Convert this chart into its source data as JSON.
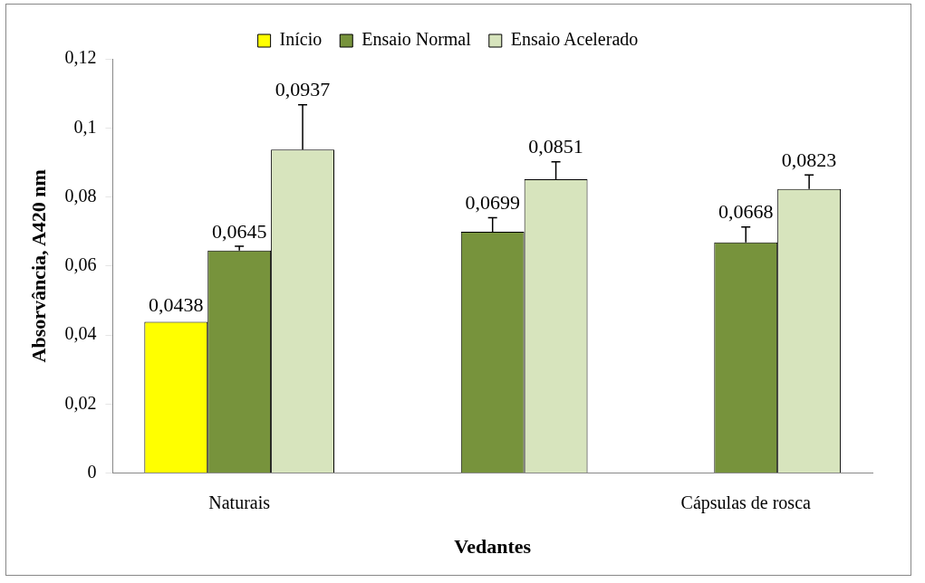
{
  "chart_data": {
    "type": "bar",
    "xlabel": "Vedantes",
    "ylabel": "Absorvância, A420 nm",
    "categories": [
      "Naturais",
      null,
      "Cápsulas de rosca"
    ],
    "series": [
      {
        "name": "Início",
        "color": "#ffff00",
        "values": [
          0.0438,
          null,
          null
        ],
        "value_labels": [
          "0,0438",
          null,
          null
        ]
      },
      {
        "name": "Ensaio Normal",
        "color": "#77933c",
        "values": [
          0.0645,
          0.0699,
          0.0668
        ],
        "value_labels": [
          "0,0645",
          "0,0699",
          "0,0668"
        ],
        "errors": [
          [
            0.0645,
            0.0657
          ],
          [
            0.0699,
            0.074
          ],
          [
            0.0668,
            0.0713
          ]
        ]
      },
      {
        "name": "Ensaio Acelerado",
        "color": "#d7e4bd",
        "values": [
          0.0937,
          0.0851,
          0.0823
        ],
        "value_labels": [
          "0,0937",
          "0,0851",
          "0,0823"
        ],
        "errors": [
          [
            0.0937,
            0.1067
          ],
          [
            0.0851,
            0.0902
          ],
          [
            0.0823,
            0.0864
          ]
        ]
      }
    ],
    "ylim": [
      0,
      0.12
    ],
    "yticks": [
      0,
      {
        "value": 0.02,
        "label": "0,02"
      },
      {
        "value": 0.04,
        "label": "0,04"
      },
      {
        "value": 0.06,
        "label": "0,06"
      },
      {
        "value": 0.08,
        "label": "0,08"
      },
      {
        "value": 0.1,
        "label": "0,1"
      },
      {
        "value": 0.12,
        "label": "0,12"
      }
    ],
    "grid": false,
    "legend": "top"
  }
}
